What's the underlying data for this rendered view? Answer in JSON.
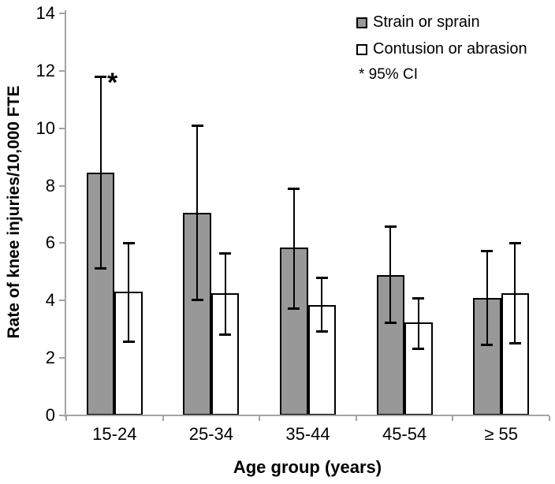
{
  "figure": {
    "y_axis_title": "Rate of knee injuries/10,000 FTE",
    "x_axis_title": "Age group (years)",
    "ci_note": "* 95% CI",
    "asterisk": "*"
  },
  "colors": {
    "bar_gray": "#989898",
    "bar_white": "#ffffff",
    "bar_border": "#000000",
    "axis_gray": "#a3a3a3",
    "error_bar": "#000000",
    "text": "#000000"
  },
  "chart_data": {
    "type": "bar",
    "title": "",
    "xlabel": "Age group (years)",
    "ylabel": "Rate of knee injuries/10,000 FTE",
    "categories": [
      "15-24",
      "25-34",
      "35-44",
      "45-54",
      "≥ 55"
    ],
    "series": [
      {
        "name": "Strain or sprain",
        "fill": "gray",
        "values": [
          8.45,
          7.05,
          5.85,
          4.9,
          4.1
        ],
        "ci_high": [
          11.8,
          10.1,
          7.9,
          6.6,
          5.75
        ],
        "ci_low": [
          5.1,
          4.0,
          3.7,
          3.2,
          2.45
        ]
      },
      {
        "name": "Contusion or abrasion",
        "fill": "white",
        "values": [
          4.3,
          4.25,
          3.85,
          3.25,
          4.25
        ],
        "ci_high": [
          6.0,
          5.65,
          4.8,
          4.1,
          6.0
        ],
        "ci_low": [
          2.55,
          2.8,
          2.9,
          2.3,
          2.5
        ]
      }
    ],
    "ylim": [
      0,
      14
    ],
    "yticks": [
      0,
      2,
      4,
      6,
      8,
      10,
      12,
      14
    ],
    "error_bars": "95% CI",
    "legend_position": "top-right",
    "grid": false,
    "annotation": {
      "text": "*",
      "meaning": "95% CI",
      "location": "upper CI of first Strain or sprain bar"
    }
  }
}
